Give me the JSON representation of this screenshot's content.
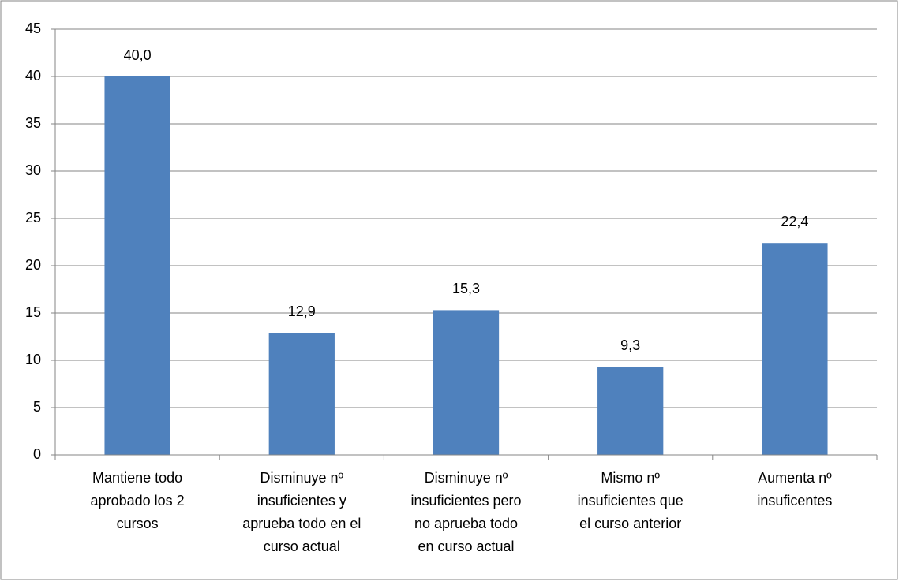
{
  "chart_data": {
    "type": "bar",
    "categories": [
      [
        "Mantiene todo",
        "aprobado los 2",
        "cursos"
      ],
      [
        "Disminuye nº",
        "insuficientes y",
        "aprueba todo en el",
        "curso actual"
      ],
      [
        "Disminuye nº",
        "insuficientes pero",
        "no aprueba todo",
        "en curso actual"
      ],
      [
        "Mismo nº",
        "insuficientes que",
        "el curso anterior"
      ],
      [
        "Aumenta nº",
        "insuficentes"
      ]
    ],
    "values": [
      40.0,
      12.9,
      15.3,
      9.3,
      22.4
    ],
    "value_labels": [
      "40,0",
      "12,9",
      "15,3",
      "9,3",
      "22,4"
    ],
    "color": "#4f81bd",
    "ylim": [
      0,
      45
    ],
    "yticks": [
      0,
      5,
      10,
      15,
      20,
      25,
      30,
      35,
      40,
      45
    ],
    "grid": true
  }
}
